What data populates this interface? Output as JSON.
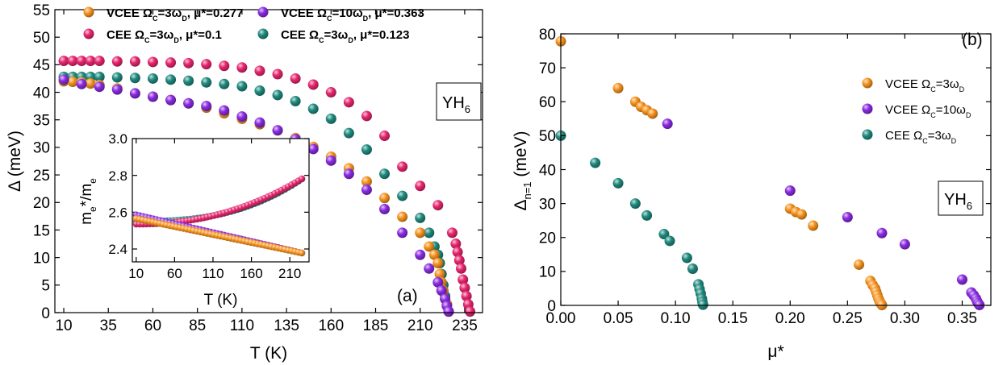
{
  "colors": {
    "orange": "#f7931e",
    "purple": "#8a2be2",
    "pink": "#e8266f",
    "teal": "#1f8a7e"
  },
  "chart_data": [
    {
      "panel": "a",
      "type": "scatter",
      "panel_label": "(a)",
      "material_label": {
        "base": "YH",
        "sub": "6"
      },
      "xlabel": "T (K)",
      "ylabel": "Δ (meV)",
      "xlim": [
        5,
        245
      ],
      "ylim": [
        0,
        55
      ],
      "xticks": [
        "10",
        "35",
        "60",
        "85",
        "110",
        "135",
        "160",
        "185",
        "210",
        "235"
      ],
      "xtick_values": [
        10,
        35,
        60,
        85,
        110,
        135,
        160,
        185,
        210,
        235
      ],
      "yticks": [
        "0",
        "5",
        "10",
        "15",
        "20",
        "25",
        "30",
        "35",
        "40",
        "45",
        "50",
        "55"
      ],
      "ytick_values": [
        0,
        5,
        10,
        15,
        20,
        25,
        30,
        35,
        40,
        45,
        50,
        55
      ],
      "legend": [
        {
          "key": "pink",
          "parts": [
            "CEE Ω",
            "C",
            "=3ω",
            "D",
            ", μ*=0.1"
          ]
        },
        {
          "key": "teal",
          "parts": [
            "CEE Ω",
            "C",
            "=3ω",
            "D",
            ", μ*=0.123"
          ]
        },
        {
          "key": "orange",
          "parts": [
            "VCEE Ω",
            "C",
            "=3ω",
            "D",
            ", μ*=0.277"
          ]
        },
        {
          "key": "purple",
          "parts": [
            "VCEE Ω",
            "C",
            "=10ω",
            "D",
            ", μ*=0.363"
          ]
        }
      ],
      "series": [
        {
          "key": "pink",
          "x": [
            10,
            15,
            20,
            25,
            30,
            40,
            50,
            60,
            70,
            80,
            90,
            100,
            110,
            120,
            130,
            140,
            150,
            160,
            170,
            180,
            190,
            200,
            210,
            220,
            228,
            230,
            231,
            232,
            233,
            234,
            235,
            236,
            237,
            238
          ],
          "y": [
            45.7,
            45.7,
            45.7,
            45.7,
            45.7,
            45.6,
            45.6,
            45.5,
            45.4,
            45.3,
            45.1,
            44.8,
            44.5,
            43.9,
            43.3,
            42.5,
            41.4,
            40.0,
            38.2,
            35.7,
            32.1,
            26.5,
            23.0,
            19.5,
            14.5,
            12.5,
            11.0,
            9.5,
            8.0,
            6.0,
            4.5,
            3.0,
            1.5,
            0.2
          ]
        },
        {
          "key": "teal",
          "x": [
            10,
            15,
            20,
            25,
            30,
            40,
            50,
            60,
            70,
            80,
            90,
            100,
            110,
            120,
            130,
            140,
            150,
            160,
            170,
            180,
            190,
            200,
            210,
            215,
            218,
            220,
            221,
            222,
            223,
            224,
            225,
            226
          ],
          "y": [
            42.8,
            42.8,
            42.8,
            42.8,
            42.8,
            42.7,
            42.6,
            42.5,
            42.3,
            42.1,
            41.8,
            41.5,
            41.1,
            40.3,
            39.5,
            38.4,
            37.0,
            35.2,
            32.6,
            29.6,
            25.2,
            21.2,
            17.2,
            14.5,
            12.0,
            10.5,
            9.0,
            7.0,
            5.0,
            3.0,
            1.5,
            0.2
          ]
        },
        {
          "key": "orange",
          "x": [
            10,
            15,
            20,
            25,
            30,
            40,
            50,
            60,
            70,
            80,
            90,
            100,
            110,
            120,
            130,
            140,
            150,
            160,
            170,
            180,
            190,
            200,
            210,
            215,
            218,
            220,
            221,
            222,
            223,
            224,
            225,
            226
          ],
          "y": [
            42.0,
            41.9,
            41.8,
            41.6,
            41.3,
            40.7,
            39.8,
            39.2,
            38.6,
            38.0,
            37.2,
            36.2,
            35.2,
            34.2,
            33.1,
            31.7,
            30.1,
            28.3,
            26.2,
            23.8,
            20.8,
            17.4,
            14.5,
            12.0,
            10.5,
            9.0,
            7.0,
            5.5,
            4.0,
            2.5,
            1.5,
            0.2
          ]
        },
        {
          "key": "purple",
          "x": [
            10,
            20,
            30,
            40,
            50,
            60,
            70,
            80,
            90,
            100,
            110,
            120,
            130,
            140,
            150,
            160,
            170,
            180,
            190,
            200,
            210,
            215,
            220,
            222,
            224,
            225,
            226
          ],
          "y": [
            42.3,
            41.5,
            41.0,
            40.5,
            39.8,
            39.2,
            38.6,
            38.0,
            37.5,
            36.7,
            35.6,
            34.5,
            33.1,
            31.5,
            29.7,
            27.6,
            25.2,
            22.3,
            18.8,
            14.5,
            10.5,
            8.0,
            5.5,
            4.0,
            2.5,
            1.2,
            0.2
          ]
        }
      ],
      "inset": {
        "type": "scatter",
        "xlabel": "T (K)",
        "ylabel_parts": [
          "m",
          "e",
          "*/m",
          "e"
        ],
        "xlim": [
          5,
          235
        ],
        "ylim": [
          2.33,
          3.0
        ],
        "xticks": [
          "10",
          "60",
          "110",
          "160",
          "210"
        ],
        "xtick_values": [
          10,
          60,
          110,
          160,
          210
        ],
        "yticks": [
          "2.4",
          "2.6",
          "2.8",
          "3.0"
        ],
        "ytick_values": [
          2.4,
          2.6,
          2.8,
          3.0
        ],
        "series": [
          {
            "key": "teal",
            "y0": 2.55,
            "y1": 2.79,
            "shape": "rise",
            "curv": 2.6
          },
          {
            "key": "pink",
            "y0": 2.535,
            "y1": 2.79,
            "shape": "rise",
            "curv": 2.2
          },
          {
            "key": "purple",
            "y0": 2.585,
            "y1": 2.375,
            "shape": "fall",
            "curv": 1.0
          },
          {
            "key": "orange",
            "y0": 2.565,
            "y1": 2.375,
            "shape": "fall",
            "curv": 1.0
          }
        ]
      }
    },
    {
      "panel": "b",
      "type": "scatter",
      "panel_label": "(b)",
      "material_label": {
        "base": "YH",
        "sub": "6"
      },
      "xlabel": "μ*",
      "ylabel_parts": [
        "Δ",
        "n=1",
        " (meV)"
      ],
      "xlim": [
        0,
        0.375
      ],
      "ylim": [
        0,
        80
      ],
      "xticks": [
        "0.00",
        "0.05",
        "0.10",
        "0.15",
        "0.20",
        "0.25",
        "0.30",
        "0.35"
      ],
      "xtick_values": [
        0,
        0.05,
        0.1,
        0.15,
        0.2,
        0.25,
        0.3,
        0.35
      ],
      "yticks": [
        "0",
        "10",
        "20",
        "30",
        "40",
        "50",
        "60",
        "70",
        "80"
      ],
      "ytick_values": [
        0,
        10,
        20,
        30,
        40,
        50,
        60,
        70,
        80
      ],
      "legend": [
        {
          "key": "orange",
          "parts": [
            "VCEE Ω",
            "C",
            "=3ω",
            "D"
          ]
        },
        {
          "key": "purple",
          "parts": [
            "VCEE Ω",
            "C",
            "=10ω",
            "D"
          ]
        },
        {
          "key": "teal",
          "parts": [
            "CEE Ω",
            "C",
            "=3ω",
            "D"
          ]
        }
      ],
      "series": [
        {
          "key": "orange",
          "x": [
            0.0,
            0.05,
            0.065,
            0.07,
            0.075,
            0.08,
            0.2,
            0.205,
            0.21,
            0.22,
            0.26,
            0.27,
            0.272,
            0.274,
            0.275,
            0.276,
            0.277,
            0.278,
            0.279,
            0.28
          ],
          "y": [
            77.8,
            64.0,
            60.0,
            58.5,
            57.5,
            56.5,
            28.5,
            27.5,
            26.8,
            23.5,
            12.0,
            7.2,
            6.0,
            5.0,
            4.0,
            3.0,
            2.0,
            1.2,
            0.6,
            0.1
          ]
        },
        {
          "key": "purple",
          "x": [
            0.093,
            0.2,
            0.25,
            0.28,
            0.3,
            0.35,
            0.358,
            0.36,
            0.362,
            0.363,
            0.364,
            0.365
          ],
          "y": [
            53.5,
            33.8,
            26.0,
            21.3,
            18.0,
            7.6,
            3.8,
            3.0,
            2.0,
            1.2,
            0.6,
            0.1
          ]
        },
        {
          "key": "teal",
          "x": [
            0.0,
            0.03,
            0.05,
            0.065,
            0.075,
            0.09,
            0.095,
            0.11,
            0.115,
            0.12,
            0.121,
            0.122,
            0.123,
            0.1235,
            0.124
          ],
          "y": [
            50.0,
            42.0,
            36.0,
            30.0,
            26.5,
            21.0,
            19.0,
            14.0,
            10.8,
            6.2,
            4.8,
            3.5,
            2.0,
            1.0,
            0.2
          ]
        }
      ]
    }
  ]
}
